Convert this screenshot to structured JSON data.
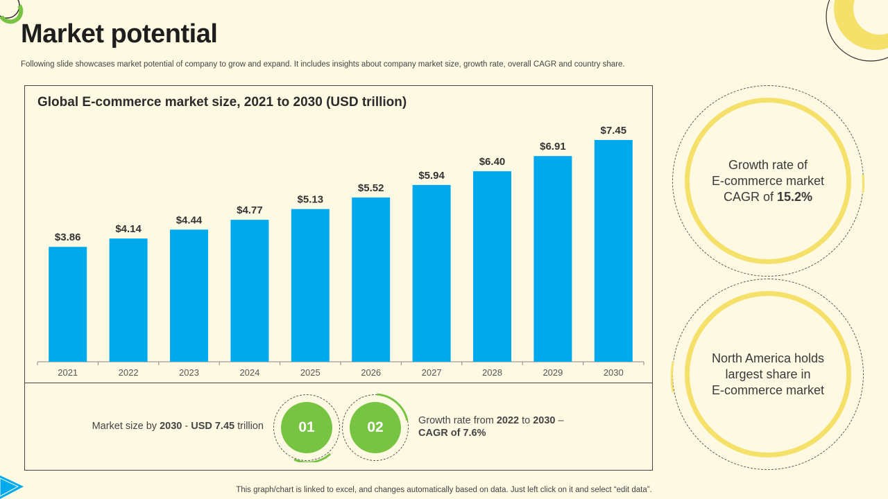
{
  "page": {
    "title": "Market potential",
    "subtitle": "Following slide showcases market potential of company to grow and expand. It includes insights about company market size, growth rate, overall CAGR and country share.",
    "footer": "This graph/chart is linked to excel, and changes automatically based on data. Just left click on it and select “edit data”."
  },
  "chart_data": {
    "type": "bar",
    "title": "Global E-commerce market size, 2021 to 2030 (USD trillion)",
    "categories": [
      "2021",
      "2022",
      "2023",
      "2024",
      "2025",
      "2026",
      "2027",
      "2028",
      "2029",
      "2030"
    ],
    "values": [
      3.86,
      4.14,
      4.44,
      4.77,
      5.13,
      5.52,
      5.94,
      6.4,
      6.91,
      7.45
    ],
    "value_labels": [
      "$3.86",
      "$4.14",
      "$4.44",
      "$4.77",
      "$5.13",
      "$5.52",
      "$5.94",
      "$6.40",
      "$6.91",
      "$7.45"
    ],
    "xlabel": "",
    "ylabel": "",
    "ylim": [
      0,
      7.45
    ],
    "grid": false,
    "legend": "none"
  },
  "summary": {
    "left": {
      "prefix": "Market size by ",
      "year": "2030",
      "separator": " - ",
      "amount": "USD 7.45",
      "suffix": " trillion"
    },
    "badge1": "01",
    "badge2": "02",
    "right": {
      "prefix": "Growth rate from ",
      "year_from": "2022",
      "to_word": " to ",
      "year_to": "2030",
      "dash": " –",
      "cagr": "CAGR of 7.6%"
    }
  },
  "stats": {
    "growth": {
      "line1": "Growth rate of",
      "line2": "E-commerce market",
      "line3_prefix": "CAGR of ",
      "line3_value": "15.2%"
    },
    "share": {
      "line1": "North America holds",
      "line2": "largest share in",
      "line3": "E-commerce market"
    }
  },
  "colors": {
    "bar": "#00a9ec",
    "badge": "#76c442",
    "ring": "#f5e06a",
    "background": "#fdf9e3"
  }
}
